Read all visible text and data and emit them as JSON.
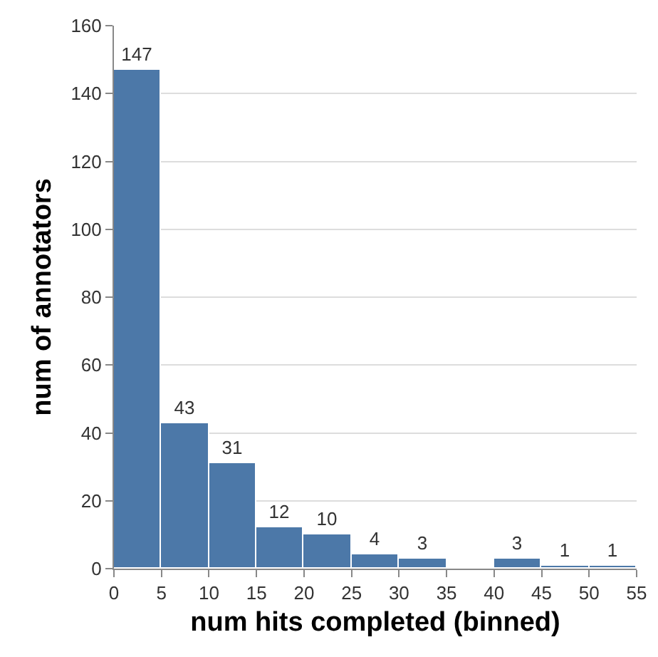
{
  "chart_data": {
    "type": "histogram",
    "xlabel": "num hits completed (binned)",
    "ylabel": "num of annotators",
    "bins": [
      0,
      5,
      10,
      15,
      20,
      25,
      30,
      35,
      40,
      45,
      50,
      55
    ],
    "values": [
      147,
      43,
      31,
      12,
      10,
      4,
      3,
      0,
      3,
      1,
      1
    ],
    "value_labels": [
      "147",
      "43",
      "31",
      "12",
      "10",
      "4",
      "3",
      null,
      "3",
      "1",
      "1"
    ],
    "color": "#4c78a8",
    "xlim": [
      0,
      55
    ],
    "xticks": [
      0,
      5,
      10,
      15,
      20,
      25,
      30,
      35,
      40,
      45,
      50,
      55
    ],
    "ylim": [
      0,
      160
    ],
    "yticks": [
      0,
      20,
      40,
      60,
      80,
      100,
      120,
      140,
      160
    ],
    "grid": "y"
  }
}
